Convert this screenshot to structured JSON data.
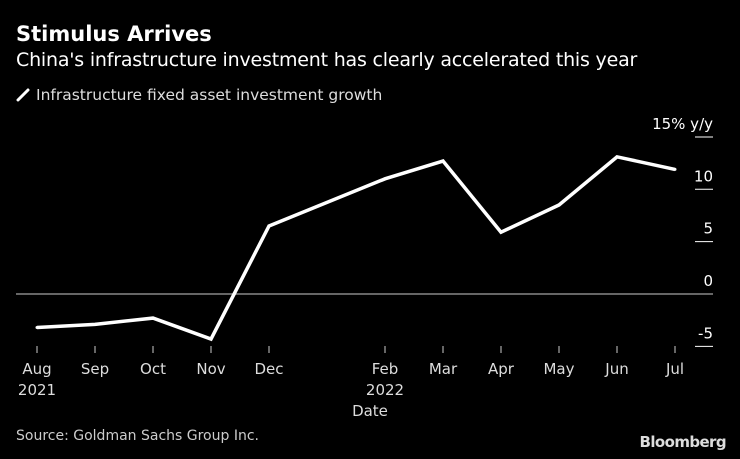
{
  "header": {
    "title": "Stimulus Arrives",
    "subtitle": "China's infrastructure investment has clearly accelerated this year"
  },
  "footer": {
    "source": "Source: Goldman Sachs Group Inc.",
    "logo": "Bloomberg"
  },
  "chart_data": {
    "type": "line",
    "title": "Stimulus Arrives",
    "subtitle": "China's infrastructure investment has clearly accelerated this year",
    "xlabel": "Date",
    "ylabel": "",
    "y_unit_label": "15% y/y",
    "ylim": [
      -5,
      15
    ],
    "yticks": [
      {
        "value": 15,
        "label": "15% y/y"
      },
      {
        "value": 10,
        "label": "10"
      },
      {
        "value": 5,
        "label": "5"
      },
      {
        "value": 0,
        "label": "0"
      },
      {
        "value": -5,
        "label": "-5"
      }
    ],
    "x": [
      "2021-08",
      "2021-09",
      "2021-10",
      "2021-11",
      "2021-12",
      "2022-02",
      "2022-03",
      "2022-04",
      "2022-05",
      "2022-06",
      "2022-07"
    ],
    "xticks": [
      {
        "date": "2021-08",
        "label": "Aug",
        "year": "2021"
      },
      {
        "date": "2021-09",
        "label": "Sep"
      },
      {
        "date": "2021-10",
        "label": "Oct"
      },
      {
        "date": "2021-11",
        "label": "Nov"
      },
      {
        "date": "2021-12",
        "label": "Dec"
      },
      {
        "date": "2022-02",
        "label": "Feb",
        "year": "2022"
      },
      {
        "date": "2022-03",
        "label": "Mar"
      },
      {
        "date": "2022-04",
        "label": "Apr"
      },
      {
        "date": "2022-05",
        "label": "May"
      },
      {
        "date": "2022-06",
        "label": "Jun"
      },
      {
        "date": "2022-07",
        "label": "Jul"
      }
    ],
    "series": [
      {
        "name": "Infrastructure fixed asset investment growth",
        "color": "#ffffff",
        "values": [
          -3.2,
          -2.9,
          -2.3,
          -4.3,
          6.5,
          11.0,
          12.7,
          5.9,
          8.5,
          13.1,
          11.9
        ]
      }
    ],
    "zero_line_color": "#888888",
    "grid": false,
    "legend_position": "top-left",
    "y_axis_side": "right"
  }
}
